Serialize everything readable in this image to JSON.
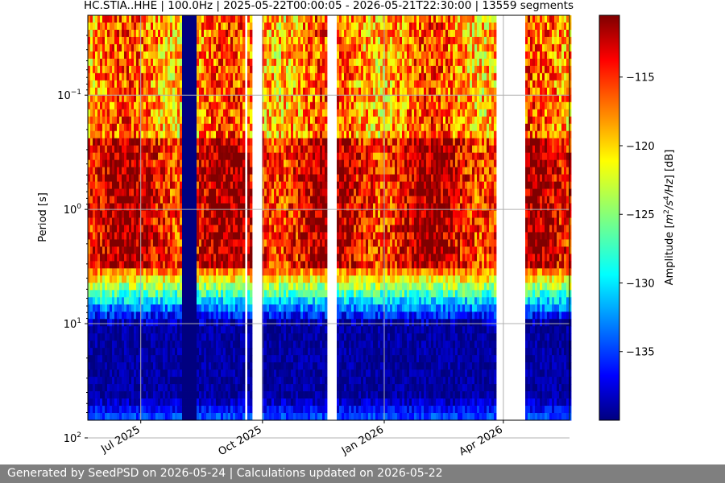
{
  "chart_data": {
    "type": "heatmap",
    "title": "HC.STIA..HHE | 100.0Hz | 2025-05-22T00:00:05 - 2026-05-21T22:30:00 | 13559 segments",
    "ylabel": "Period [s]",
    "y_scale": "log",
    "y_inverted": true,
    "ylim": [
      0.02,
      70
    ],
    "y_ticks": [
      {
        "value": 0.1,
        "base": "10",
        "exp": "−1"
      },
      {
        "value": 1,
        "base": "10",
        "exp": "0"
      },
      {
        "value": 10,
        "base": "10",
        "exp": "1"
      },
      {
        "value": 100,
        "base": "10",
        "exp": "2"
      }
    ],
    "x_axis": "date",
    "xlim": [
      "2025-05-22",
      "2026-05-21"
    ],
    "x_ticks": [
      {
        "date": "2025-07-01",
        "label": "Jul 2025"
      },
      {
        "date": "2025-10-01",
        "label": "Oct 2025"
      },
      {
        "date": "2026-01-01",
        "label": "Jan 2026"
      },
      {
        "date": "2026-04-01",
        "label": "Apr 2026"
      }
    ],
    "grid": true,
    "colormap": "jet",
    "colorbar": {
      "label": "Amplitude [m²/s⁴/Hz] [dB]",
      "label_parts": {
        "pre": "Amplitude [",
        "m": "m",
        "m_exp": "2",
        "mid": "/s",
        "s_exp": "4",
        "hz": "/Hz",
        "post": "] [dB]"
      },
      "range": [
        -140,
        -110.5
      ],
      "ticks": [
        -115,
        -120,
        -125,
        -130,
        -135
      ]
    },
    "data_gaps": [
      [
        "2025-09-18",
        "2025-09-20"
      ],
      [
        "2025-09-23",
        "2025-10-01"
      ],
      [
        "2025-11-19",
        "2025-11-27"
      ],
      [
        "2026-03-26",
        "2026-03-30"
      ],
      [
        "2026-03-31",
        "2026-04-18"
      ]
    ],
    "instrument_artifact": [
      "2025-08-02",
      "2025-08-13"
    ],
    "levels_db": {
      "short_period_base": -120,
      "microseism_band": -116,
      "quiet_band": -139,
      "long_period": -132,
      "longest_period": -111
    }
  },
  "footer": {
    "text": "Generated by SeedPSD on 2026-05-24 | Calculations updated on 2026-05-22"
  },
  "colors": {
    "footer_bg": "#7f7f7f",
    "grid": "#b0b0b0"
  }
}
